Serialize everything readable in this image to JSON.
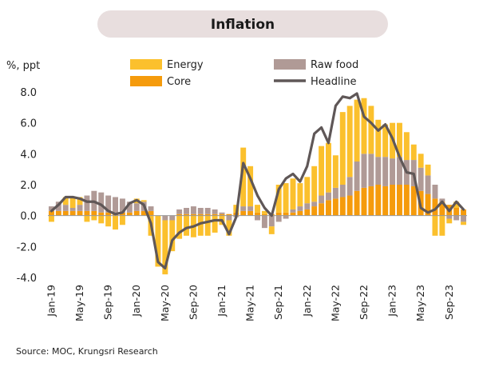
{
  "title": "Inflation",
  "unit_label": "%, ppt",
  "source": "Source: MOC, Krungsri Research",
  "colors": {
    "energy": "#fbc02d",
    "core": "#f59b0c",
    "raw_food": "#b09a96",
    "headline": "#5f5757",
    "title_bg": "#e8dede"
  },
  "chart_data": {
    "type": "bar",
    "stacked": true,
    "ylim": [
      -4,
      8
    ],
    "yticks": [
      -4,
      -2,
      0,
      2,
      4,
      6,
      8
    ],
    "ytick_labels": [
      "-4.0",
      "-2.0",
      "0.0",
      "2.0",
      "4.0",
      "6.0",
      "8.0"
    ],
    "x_tick_labels": [
      "Jan-19",
      "May-19",
      "Sep-19",
      "Jan-20",
      "May-20",
      "Sep-20",
      "Jan-21",
      "May-21",
      "Sep-21",
      "Jan-22",
      "May-22",
      "Sep-22",
      "Jan-23",
      "May-23",
      "Sep-23"
    ],
    "x_tick_every": 4,
    "legend_position": "top",
    "series": [
      {
        "name": "Energy",
        "kind": "bar",
        "values": [
          -0.4,
          0.0,
          0.5,
          0.7,
          0.5,
          -0.4,
          -0.3,
          -0.5,
          -0.7,
          -0.9,
          -0.6,
          0.0,
          0.3,
          0.1,
          -1.3,
          -3.3,
          -3.5,
          -2.0,
          -1.5,
          -1.3,
          -1.4,
          -1.3,
          -1.3,
          -1.1,
          -0.6,
          -1.0,
          0.5,
          3.8,
          2.6,
          0.5,
          0.2,
          -0.5,
          1.8,
          1.9,
          2.0,
          1.5,
          1.7,
          2.3,
          3.2,
          3.2,
          2.1,
          4.7,
          4.6,
          4.0,
          3.6,
          3.1,
          2.4,
          2.1,
          2.3,
          2.2,
          1.8,
          1.0,
          0.9,
          0.7,
          -1.3,
          -1.3,
          -0.3,
          0.4,
          -0.2
        ]
      },
      {
        "name": "Core",
        "kind": "bar",
        "values": [
          0.3,
          0.3,
          0.3,
          0.3,
          0.3,
          0.3,
          0.3,
          0.2,
          0.2,
          0.2,
          0.2,
          0.2,
          0.3,
          0.3,
          0.3,
          0.0,
          0.0,
          0.0,
          0.1,
          0.1,
          0.1,
          0.1,
          0.1,
          0.1,
          0.1,
          0.1,
          0.2,
          0.3,
          0.3,
          0.2,
          0.1,
          0.1,
          0.2,
          0.2,
          0.2,
          0.3,
          0.4,
          0.6,
          0.8,
          1.0,
          1.1,
          1.2,
          1.3,
          1.6,
          1.8,
          1.9,
          2.0,
          1.9,
          2.0,
          2.0,
          2.0,
          1.9,
          1.6,
          1.4,
          1.1,
          0.9,
          0.7,
          0.5,
          0.4
        ]
      },
      {
        "name": "Raw food",
        "kind": "bar",
        "values": [
          0.3,
          0.6,
          0.4,
          0.2,
          0.4,
          1.0,
          1.3,
          1.3,
          1.1,
          1.0,
          0.9,
          0.7,
          0.5,
          0.6,
          0.3,
          0.0,
          -0.3,
          -0.3,
          0.3,
          0.4,
          0.5,
          0.4,
          0.4,
          0.3,
          0.1,
          -0.3,
          -0.1,
          0.3,
          0.3,
          -0.3,
          -0.8,
          -0.7,
          -0.4,
          -0.2,
          0.2,
          0.3,
          0.4,
          0.3,
          0.5,
          0.5,
          0.7,
          0.8,
          1.2,
          1.9,
          2.2,
          2.1,
          1.8,
          1.9,
          1.7,
          1.8,
          1.6,
          1.7,
          1.5,
          1.2,
          0.9,
          0.2,
          -0.2,
          -0.3,
          -0.4
        ]
      },
      {
        "name": "Headline",
        "kind": "line",
        "values": [
          0.3,
          0.7,
          1.2,
          1.2,
          1.1,
          0.9,
          0.9,
          0.7,
          0.3,
          0.1,
          0.2,
          0.8,
          1.0,
          0.7,
          -0.5,
          -3.0,
          -3.4,
          -1.6,
          -1.1,
          -0.8,
          -0.7,
          -0.5,
          -0.4,
          -0.3,
          -0.3,
          -1.2,
          -0.1,
          3.4,
          2.4,
          1.3,
          0.5,
          0.0,
          1.7,
          2.4,
          2.7,
          2.2,
          3.2,
          5.3,
          5.7,
          4.7,
          7.1,
          7.7,
          7.6,
          7.9,
          6.4,
          6.0,
          5.5,
          5.9,
          5.0,
          3.8,
          2.8,
          2.7,
          0.5,
          0.2,
          0.4,
          0.9,
          0.3,
          0.9,
          0.4
        ]
      }
    ]
  }
}
